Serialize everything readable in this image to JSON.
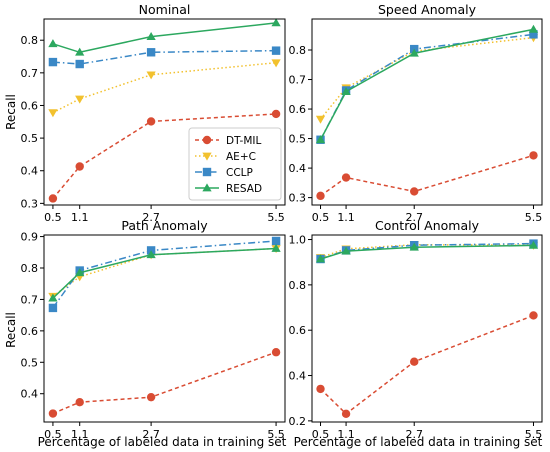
{
  "figure": {
    "xlabel": "Percentage of labeled data in training set",
    "ylabel": "Recall"
  },
  "legend": {
    "placement": "lower-right of first panel",
    "entries": [
      "DT-MIL",
      "AE+C",
      "CCLP",
      "RESAD"
    ]
  },
  "series_styles": [
    {
      "name": "DT-MIL",
      "color": "#d94c33",
      "dash": "4,3",
      "marker": "circle"
    },
    {
      "name": "AE+C",
      "color": "#f2c12e",
      "dash": "1.5,2.5",
      "marker": "triangle-down"
    },
    {
      "name": "CCLP",
      "color": "#3a88c6",
      "dash": "7,3,1.5,3",
      "marker": "square"
    },
    {
      "name": "RESAD",
      "color": "#2ca85f",
      "dash": "",
      "marker": "triangle-up"
    }
  ],
  "chart_data": [
    {
      "type": "line",
      "title": "Nominal",
      "x": [
        0.5,
        1.1,
        2.7,
        5.5
      ],
      "xticks": [
        "0.5",
        "1.1",
        "2.7",
        "5.5"
      ],
      "xlim": [
        0.3,
        5.7
      ],
      "ylim": [
        0.295,
        0.865
      ],
      "yticks": [
        "0.3",
        "0.4",
        "0.5",
        "0.6",
        "0.7",
        "0.8"
      ],
      "xlabel": "",
      "ylabel": "Recall",
      "series": [
        {
          "name": "DT-MIL",
          "values": [
            0.315,
            0.413,
            0.551,
            0.574
          ]
        },
        {
          "name": "AE+C",
          "values": [
            0.578,
            0.62,
            0.694,
            0.731
          ]
        },
        {
          "name": "CCLP",
          "values": [
            0.733,
            0.727,
            0.763,
            0.768
          ]
        },
        {
          "name": "RESAD",
          "values": [
            0.789,
            0.763,
            0.811,
            0.853
          ]
        }
      ]
    },
    {
      "type": "line",
      "title": "Speed Anomaly",
      "x": [
        0.5,
        1.1,
        2.7,
        5.5
      ],
      "xticks": [
        "0.5",
        "1.1",
        "2.7",
        "5.5"
      ],
      "xlim": [
        0.3,
        5.7
      ],
      "ylim": [
        0.275,
        0.905
      ],
      "yticks": [
        "0.3",
        "0.4",
        "0.5",
        "0.6",
        "0.7",
        "0.8"
      ],
      "xlabel": "",
      "ylabel": "",
      "series": [
        {
          "name": "DT-MIL",
          "values": [
            0.306,
            0.368,
            0.321,
            0.443
          ]
        },
        {
          "name": "AE+C",
          "values": [
            0.566,
            0.672,
            0.796,
            0.842
          ]
        },
        {
          "name": "CCLP",
          "values": [
            0.496,
            0.663,
            0.803,
            0.853
          ]
        },
        {
          "name": "RESAD",
          "values": [
            0.496,
            0.659,
            0.789,
            0.87
          ]
        }
      ]
    },
    {
      "type": "line",
      "title": "Path Anomaly",
      "x": [
        0.5,
        1.1,
        2.7,
        5.5
      ],
      "xticks": [
        "0.5",
        "1.1",
        "2.7",
        "5.5"
      ],
      "xlim": [
        0.3,
        5.7
      ],
      "ylim": [
        0.31,
        0.905
      ],
      "yticks": [
        "0.4",
        "0.5",
        "0.6",
        "0.7",
        "0.8",
        "0.9"
      ],
      "xlabel": "Percentage of labeled data in training set",
      "ylabel": "Recall",
      "series": [
        {
          "name": "DT-MIL",
          "values": [
            0.337,
            0.373,
            0.389,
            0.532
          ]
        },
        {
          "name": "AE+C",
          "values": [
            0.71,
            0.772,
            0.842,
            0.862
          ]
        },
        {
          "name": "CCLP",
          "values": [
            0.673,
            0.792,
            0.856,
            0.886
          ]
        },
        {
          "name": "RESAD",
          "values": [
            0.704,
            0.785,
            0.842,
            0.862
          ]
        }
      ]
    },
    {
      "type": "line",
      "title": "Control Anomaly",
      "x": [
        0.5,
        1.1,
        2.7,
        5.5
      ],
      "xticks": [
        "0.5",
        "1.1",
        "2.7",
        "5.5"
      ],
      "xlim": [
        0.3,
        5.7
      ],
      "ylim": [
        0.195,
        1.02
      ],
      "yticks": [
        "0.2",
        "0.4",
        "0.6",
        "0.8",
        "1.0"
      ],
      "xlabel": "Percentage of labeled data in training set",
      "ylabel": "",
      "series": [
        {
          "name": "DT-MIL",
          "values": [
            0.341,
            0.231,
            0.461,
            0.665
          ]
        },
        {
          "name": "AE+C",
          "values": [
            0.921,
            0.959,
            0.977,
            0.975
          ]
        },
        {
          "name": "CCLP",
          "values": [
            0.914,
            0.952,
            0.975,
            0.982
          ]
        },
        {
          "name": "RESAD",
          "values": [
            0.914,
            0.949,
            0.966,
            0.974
          ]
        }
      ]
    }
  ]
}
